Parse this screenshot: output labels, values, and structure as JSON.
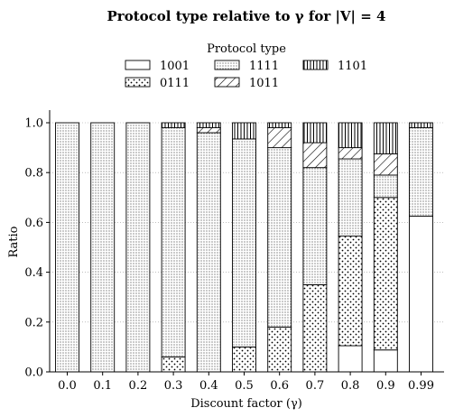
{
  "chart_data": {
    "type": "bar",
    "stacked": true,
    "title": "Protocol type relative to γ for |V| = 4",
    "xlabel": "Discount factor (γ)",
    "ylabel": "Ratio",
    "ylim": [
      0,
      1.05
    ],
    "yticks": [
      "0.0",
      "0.2",
      "0.4",
      "0.6",
      "0.8",
      "1.0"
    ],
    "grid": "horizontal dotted",
    "legend_title": "Protocol type",
    "legend_placement": "top-center",
    "categories": [
      "0.0",
      "0.1",
      "0.2",
      "0.3",
      "0.4",
      "0.5",
      "0.6",
      "0.7",
      "0.8",
      "0.9",
      "0.99"
    ],
    "series": [
      {
        "name": "1001",
        "pattern": "none",
        "values": [
          0,
          0,
          0,
          0,
          0,
          0,
          0,
          0,
          0.105,
          0.088,
          0.625
        ]
      },
      {
        "name": "0111",
        "pattern": "dots",
        "values": [
          0,
          0,
          0,
          0.06,
          0,
          0.1,
          0.18,
          0.35,
          0.44,
          0.612,
          0
        ]
      },
      {
        "name": "1111",
        "pattern": "fine-dots",
        "values": [
          1.0,
          1.0,
          1.0,
          0.92,
          0.96,
          0.835,
          0.72,
          0.47,
          0.31,
          0.09,
          0.355
        ]
      },
      {
        "name": "1011",
        "pattern": "diagonal",
        "values": [
          0,
          0,
          0,
          0,
          0.02,
          0,
          0.08,
          0.1,
          0.045,
          0.085,
          0
        ]
      },
      {
        "name": "1101",
        "pattern": "vertical",
        "values": [
          0,
          0,
          0,
          0.02,
          0.02,
          0.065,
          0.02,
          0.08,
          0.1,
          0.125,
          0.02
        ]
      }
    ]
  }
}
